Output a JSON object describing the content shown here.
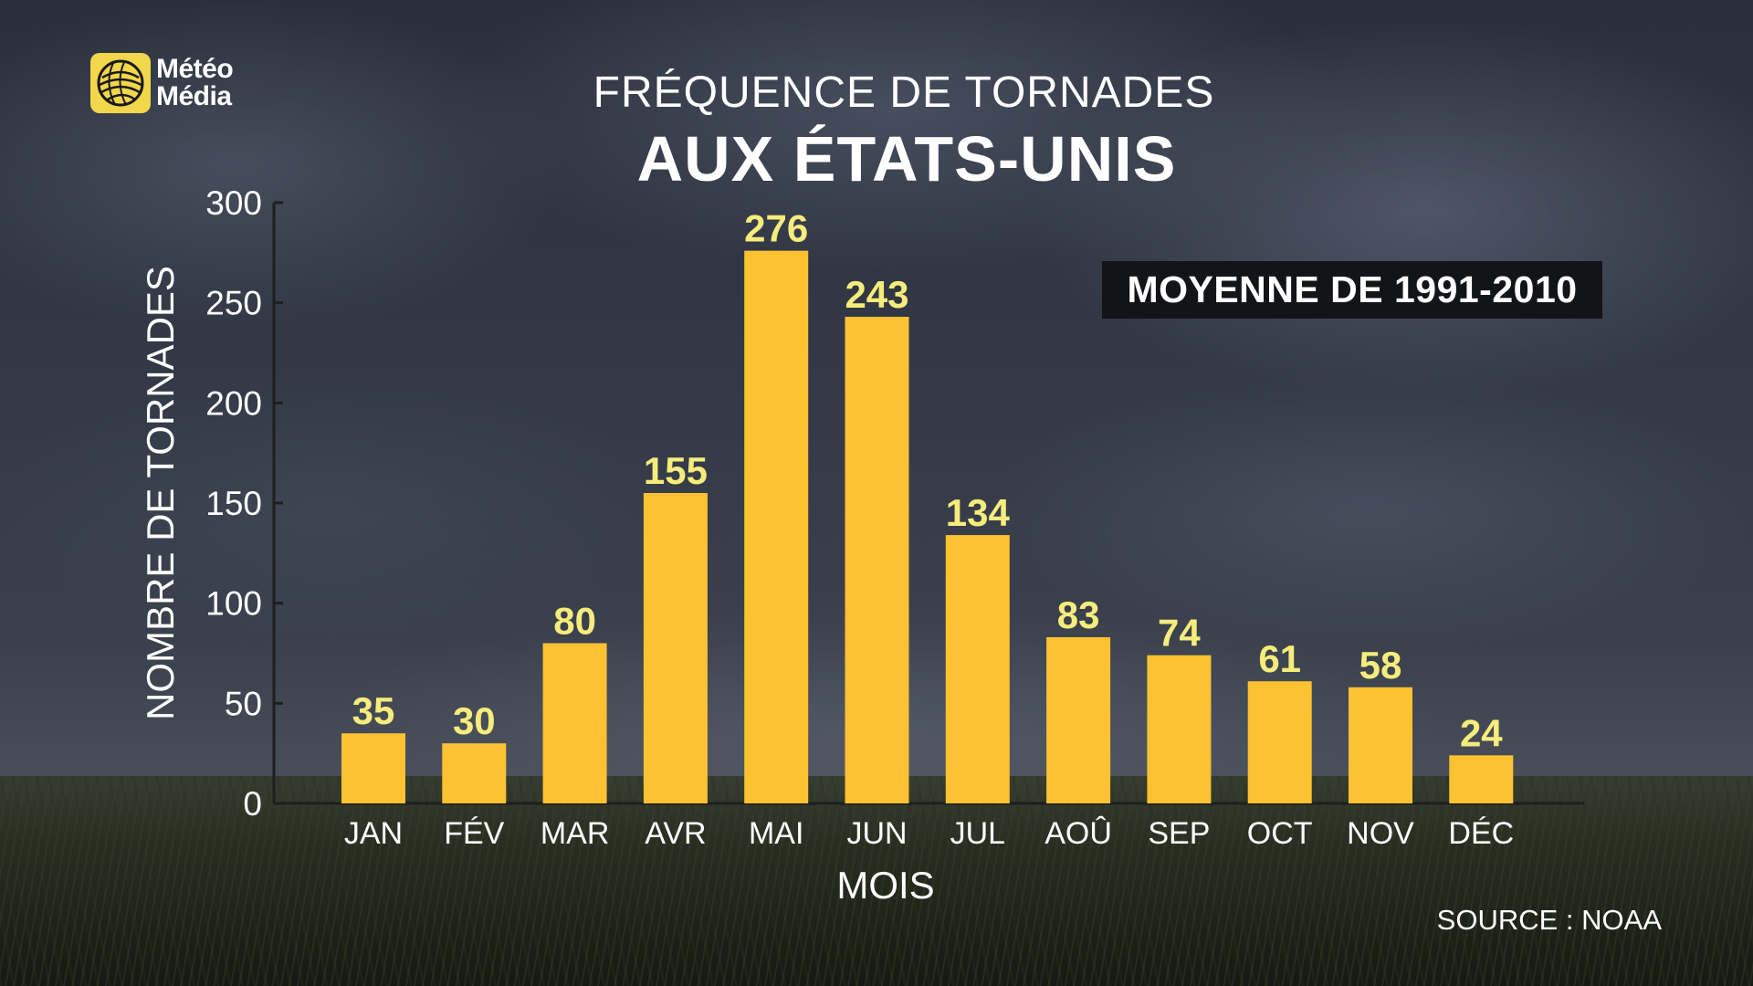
{
  "brand": {
    "name_line1": "Météo",
    "name_line2": "Média",
    "logo_color": "#f2d64b"
  },
  "title": {
    "line1": "FRÉQUENCE DE TORNADES",
    "line2": "AUX ÉTATS-UNIS"
  },
  "badge": "MOYENNE DE 1991-2010",
  "source": "SOURCE : NOAA",
  "colors": {
    "bar": "#fcc232",
    "bar_label": "#f6ec7c",
    "axis": "#1e1e1e",
    "text": "#ffffff"
  },
  "chart_data": {
    "type": "bar",
    "title": "FRÉQUENCE DE TORNADES AUX ÉTATS-UNIS",
    "xlabel": "MOIS",
    "ylabel": "NOMBRE DE TORNADES",
    "categories": [
      "JAN",
      "FÉV",
      "MAR",
      "AVR",
      "MAI",
      "JUN",
      "JUL",
      "AOÛ",
      "SEP",
      "OCT",
      "NOV",
      "DÉC"
    ],
    "values": [
      35,
      30,
      80,
      155,
      276,
      243,
      134,
      83,
      74,
      61,
      58,
      24
    ],
    "ylim": [
      0,
      300
    ],
    "yticks": [
      0,
      50,
      100,
      150,
      200,
      250,
      300
    ],
    "grid": false,
    "data_labels": true,
    "legend": "none"
  }
}
